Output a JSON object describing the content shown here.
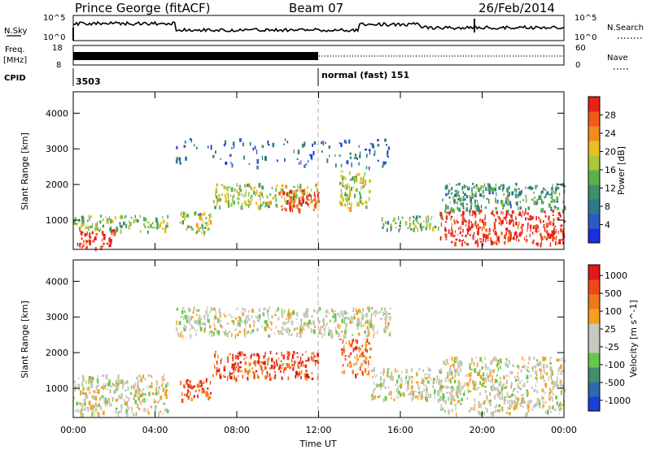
{
  "title": {
    "station": "Prince George (fitACF)",
    "beam": "Beam 07",
    "date": "26/Feb/2014"
  },
  "top_panels": {
    "nsky_label": "N.Sky",
    "nsky_ticks": [
      "10^5",
      "10^0"
    ],
    "nsearch_label": "N.Search",
    "nsearch_ticks": [
      "10^5",
      "10^0"
    ],
    "freq_label_1": "Freq.",
    "freq_label_2": "[MHz]",
    "freq_ticks": [
      "18",
      "8"
    ],
    "nave_label": "Nave",
    "nave_ticks": [
      "60",
      "0"
    ],
    "cpid_label": "CPID",
    "cpid_left": "3503",
    "cpid_right": "normal (fast) 151"
  },
  "chart_data": [
    {
      "type": "heatmap",
      "name": "power",
      "ylabel": "Slant Range [km]",
      "yticks": [
        "1000",
        "2000",
        "3000",
        "4000"
      ],
      "ylim": [
        180,
        4600
      ],
      "colorbar_label": "Power [dB]",
      "colorbar_ticks": [
        "4",
        "8",
        "12",
        "16",
        "20",
        "24",
        "28"
      ],
      "colorbar_colors": [
        "#1b2fe0",
        "#2b5ac8",
        "#2f7a8c",
        "#3f8f6a",
        "#5fb04a",
        "#a8c83a",
        "#e8c020",
        "#f28c1c",
        "#f05a1a",
        "#e8201a"
      ],
      "regions": [
        {
          "t": [
            0.0,
            4.6
          ],
          "r": [
            700,
            1150
          ],
          "level": 0.5
        },
        {
          "t": [
            0.1,
            2.0
          ],
          "r": [
            250,
            750
          ],
          "level": 0.97
        },
        {
          "t": [
            5.2,
            6.7
          ],
          "r": [
            650,
            1250
          ],
          "level": 0.55
        },
        {
          "t": [
            6.8,
            11.9
          ],
          "r": [
            1400,
            2050
          ],
          "level": 0.55
        },
        {
          "t": [
            10.0,
            12.0
          ],
          "r": [
            1300,
            1900
          ],
          "level": 0.9
        },
        {
          "t": [
            13.0,
            14.5
          ],
          "r": [
            1350,
            2400
          ],
          "level": 0.55
        },
        {
          "t": [
            15.0,
            18.0
          ],
          "r": [
            750,
            1150
          ],
          "level": 0.45
        },
        {
          "t": [
            17.9,
            24.0
          ],
          "r": [
            350,
            1300
          ],
          "level": 0.97
        },
        {
          "t": [
            18.0,
            24.0
          ],
          "r": [
            1300,
            2050
          ],
          "level": 0.35
        },
        {
          "t": [
            5.0,
            15.5
          ],
          "r": [
            2500,
            3300
          ],
          "level": 0.2
        }
      ]
    },
    {
      "type": "heatmap",
      "name": "velocity",
      "ylabel": "Slant Range [km]",
      "yticks": [
        "1000",
        "2000",
        "3000",
        "4000"
      ],
      "ylim": [
        180,
        4600
      ],
      "colorbar_label": "Velocity [m s^-1]",
      "colorbar_ticks": [
        "1000",
        "500",
        "100",
        "25",
        "-25",
        "-100",
        "-500",
        "-1000"
      ],
      "colorbar_colors": [
        "#1b3fd8",
        "#2a6ab0",
        "#3f8f6a",
        "#66c84a",
        "#c8c8c0",
        "#c8c8c0",
        "#f5a020",
        "#f07818",
        "#f04818",
        "#e01818"
      ],
      "regions": [
        {
          "t": [
            0.0,
            4.6
          ],
          "r": [
            300,
            1400
          ],
          "level": 0.5
        },
        {
          "t": [
            5.2,
            6.7
          ],
          "r": [
            700,
            1300
          ],
          "level": 0.8
        },
        {
          "t": [
            6.8,
            12.0
          ],
          "r": [
            1300,
            2050
          ],
          "level": 0.85
        },
        {
          "t": [
            13.0,
            14.5
          ],
          "r": [
            1400,
            2400
          ],
          "level": 0.75
        },
        {
          "t": [
            14.5,
            18.0
          ],
          "r": [
            700,
            1600
          ],
          "level": 0.5
        },
        {
          "t": [
            17.9,
            24.0
          ],
          "r": [
            300,
            1900
          ],
          "level": 0.5
        },
        {
          "t": [
            5.0,
            15.5
          ],
          "r": [
            2500,
            3300
          ],
          "level": 0.5
        }
      ]
    }
  ],
  "time_axis": {
    "xlabel": "Time UT",
    "ticks": [
      "00:00",
      "04:00",
      "08:00",
      "12:00",
      "16:00",
      "20:00",
      "00:00"
    ]
  }
}
